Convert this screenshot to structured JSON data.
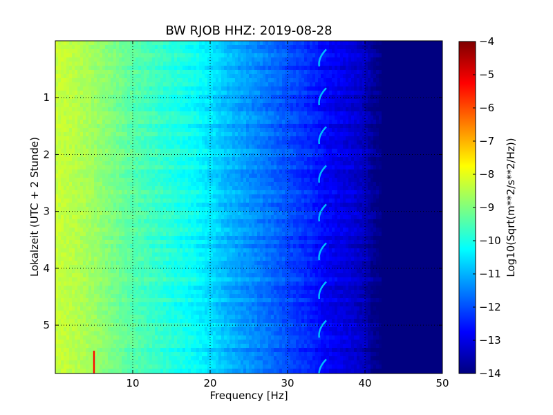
{
  "chart_data": {
    "type": "heatmap",
    "title": "BW RJOB HHZ: 2019-08-28",
    "xlabel": "Frequency [Hz]",
    "ylabel": "Lokalzeit (UTC + 2 Stunde)",
    "xlim": [
      0,
      50
    ],
    "ylim": [
      5.85,
      0
    ],
    "x_ticks": [
      10,
      20,
      30,
      40,
      50
    ],
    "y_ticks": [
      1,
      2,
      3,
      4,
      5
    ],
    "grid": true,
    "colormap": "jet",
    "colorbar": {
      "label": "Log10(Sqrt(m**2/s**2/Hz))",
      "range": [
        -14,
        -4
      ],
      "ticks": [
        -4,
        -5,
        -6,
        -7,
        -8,
        -9,
        -10,
        -11,
        -12,
        -13,
        -14
      ]
    },
    "profile": {
      "frequency_hz": [
        0,
        2,
        5,
        10,
        15,
        18,
        20,
        22,
        25,
        28,
        30,
        33,
        35,
        38,
        40,
        41,
        42,
        50
      ],
      "level": [
        -8.3,
        -8.4,
        -8.7,
        -9.4,
        -9.9,
        -10.2,
        -10.5,
        -10.9,
        -11.3,
        -11.7,
        -12.0,
        -12.4,
        -12.8,
        -13.1,
        -13.4,
        -13.8,
        -14.0,
        -14.0
      ]
    },
    "features": {
      "tone_line": {
        "frequency_hz": 5.0,
        "hours": [
          5.45,
          5.85
        ],
        "level": -5.3
      },
      "arc_signal": {
        "frequency_hz": [
          34.0,
          35.0
        ],
        "hours": [
          0.15,
          5.6
        ],
        "level": -10.9
      }
    }
  }
}
